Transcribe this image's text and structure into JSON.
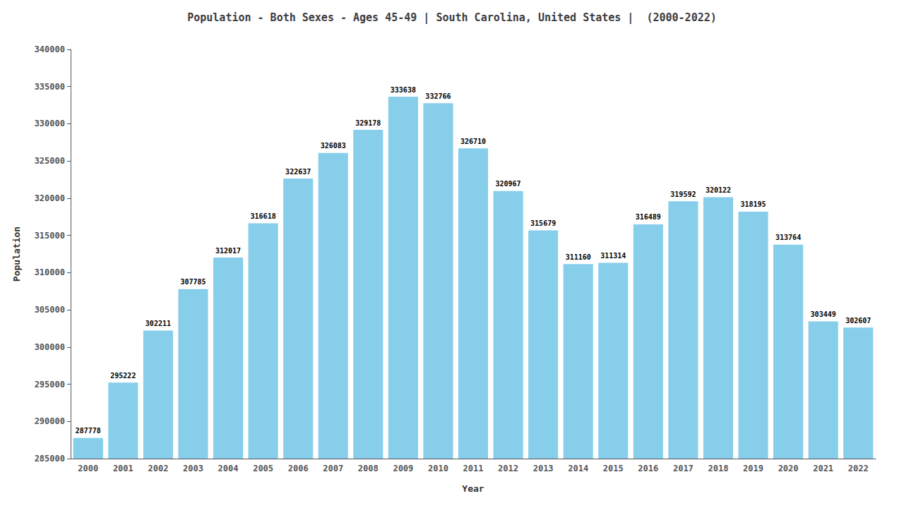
{
  "chart_data": {
    "type": "bar",
    "title": "Population - Both Sexes - Ages 45-49 | South Carolina, United States |  (2000-2022)",
    "x_label": "Year",
    "y_label": "Population",
    "categories": [
      "2000",
      "2001",
      "2002",
      "2003",
      "2004",
      "2005",
      "2006",
      "2007",
      "2008",
      "2009",
      "2010",
      "2011",
      "2012",
      "2013",
      "2014",
      "2015",
      "2016",
      "2017",
      "2018",
      "2019",
      "2020",
      "2021",
      "2022"
    ],
    "values": [
      287778,
      295222,
      302211,
      307785,
      312017,
      316618,
      322637,
      326083,
      329178,
      333638,
      332766,
      326710,
      320967,
      315679,
      311160,
      311314,
      316489,
      319592,
      320122,
      318195,
      313764,
      303449,
      302607
    ],
    "color": "#87ceeb",
    "ylim": [
      285000,
      340000
    ],
    "yticks": [
      285000,
      290000,
      295000,
      300000,
      305000,
      310000,
      315000,
      320000,
      325000,
      330000,
      335000,
      340000
    ],
    "grid": false,
    "data_labels": true
  }
}
